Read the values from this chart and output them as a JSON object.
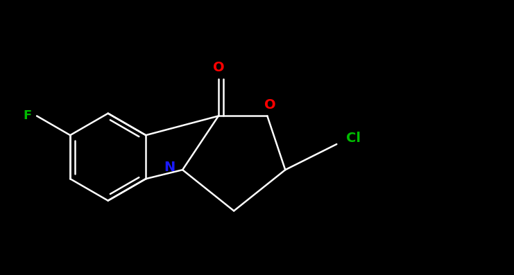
{
  "background_color": "#000000",
  "bond_color": "#ffffff",
  "atom_colors": {
    "F": "#00bb00",
    "Cl": "#00bb00",
    "N": "#1a1aff",
    "O": "#ff0000",
    "C": "#ffffff"
  },
  "figsize": [
    7.41,
    3.97
  ],
  "dpi": 100,
  "lw": 1.8,
  "fontsize": 13,
  "xlim": [
    0,
    10
  ],
  "ylim": [
    0,
    5.36
  ]
}
